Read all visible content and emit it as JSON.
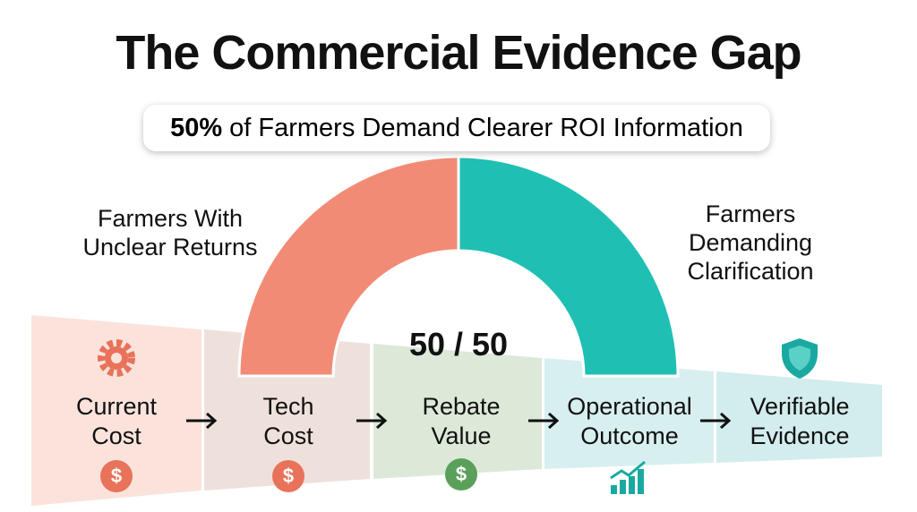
{
  "header": {
    "title": "The Commercial Evidence Gap",
    "subtitle": {
      "highlight": "50%",
      "text": "of Farmers Demand Clearer ROI Information"
    }
  },
  "gauge": {
    "center_label": "50 / 50",
    "segments": [
      {
        "name": "Farmers With Unclear Returns",
        "value": 50,
        "color": "#f28b75"
      },
      {
        "name": "Farmers Demanding Clarification",
        "value": 50,
        "color": "#20bfb4"
      }
    ]
  },
  "steps": [
    {
      "label": "Current Cost"
    },
    {
      "label": "Tech Cost"
    },
    {
      "label": "Rebate Value"
    },
    {
      "label": "Operational Outcome"
    },
    {
      "label": "Verifiable Evidence"
    }
  ]
}
